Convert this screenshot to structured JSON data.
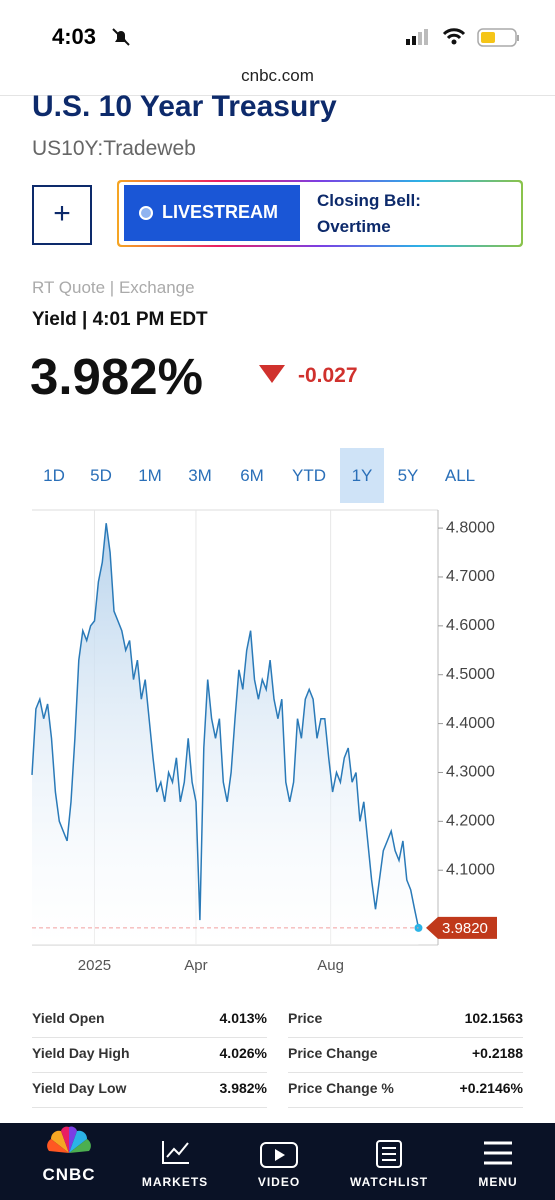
{
  "status_bar": {
    "time": "4:03"
  },
  "url": "cnbc.com",
  "header": {
    "title": "U.S. 10 Year Treasury",
    "symbol": "US10Y:Tradeweb"
  },
  "add_button": "+",
  "livestream": {
    "label": "LIVESTREAM",
    "show": "Closing Bell: Overtime"
  },
  "quote": {
    "source": "RT Quote | Exchange",
    "timestamp": "Yield | 4:01 PM EDT",
    "last": "3.982%",
    "change": "-0.027"
  },
  "ranges": {
    "options": [
      "1D",
      "5D",
      "1M",
      "3M",
      "6M",
      "YTD",
      "1Y",
      "5Y",
      "ALL"
    ],
    "active": 6
  },
  "chart_data": {
    "type": "line",
    "color": "#2a7ab8",
    "values": [
      4.295,
      4.43,
      4.45,
      4.41,
      4.44,
      4.37,
      4.26,
      4.2,
      4.18,
      4.16,
      4.24,
      4.37,
      4.53,
      4.59,
      4.57,
      4.6,
      4.61,
      4.69,
      4.73,
      4.81,
      4.75,
      4.63,
      4.61,
      4.59,
      4.55,
      4.57,
      4.49,
      4.53,
      4.45,
      4.49,
      4.41,
      4.33,
      4.26,
      4.28,
      4.24,
      4.3,
      4.28,
      4.33,
      4.24,
      4.28,
      4.37,
      4.28,
      4.24,
      3.998,
      4.35,
      4.49,
      4.41,
      4.37,
      4.41,
      4.28,
      4.24,
      4.3,
      4.41,
      4.51,
      4.47,
      4.55,
      4.59,
      4.49,
      4.45,
      4.49,
      4.47,
      4.53,
      4.45,
      4.41,
      4.45,
      4.28,
      4.24,
      4.28,
      4.41,
      4.37,
      4.45,
      4.47,
      4.45,
      4.37,
      4.41,
      4.41,
      4.33,
      4.26,
      4.3,
      4.28,
      4.33,
      4.35,
      4.28,
      4.3,
      4.2,
      4.24,
      4.16,
      4.08,
      4.02,
      4.08,
      4.14,
      4.16,
      4.18,
      4.14,
      4.12,
      4.16,
      4.08,
      4.06,
      4.02,
      3.982
    ],
    "xlim": [
      0,
      104
    ],
    "xticks": [
      {
        "value": 16,
        "label": "2025"
      },
      {
        "value": 42,
        "label": "Apr"
      },
      {
        "value": 76.5,
        "label": "Aug"
      }
    ],
    "ylim": [
      3.947,
      4.837
    ],
    "yticks": [
      {
        "value": 4.1,
        "label": "4.1000"
      },
      {
        "value": 4.2,
        "label": "4.2000"
      },
      {
        "value": 4.3,
        "label": "4.3000"
      },
      {
        "value": 4.4,
        "label": "4.4000"
      },
      {
        "value": 4.5,
        "label": "4.5000"
      },
      {
        "value": 4.6,
        "label": "4.6000"
      },
      {
        "value": 4.7,
        "label": "4.7000"
      },
      {
        "value": 4.8,
        "label": "4.8000"
      }
    ],
    "last_label": {
      "value": 3.982,
      "label": "3.9820"
    },
    "grid": true
  },
  "stats": {
    "rows": [
      [
        "Yield Open",
        "4.013%",
        "Price",
        "102.1563"
      ],
      [
        "Yield Day High",
        "4.026%",
        "Price Change",
        "+0.2188"
      ],
      [
        "Yield Day Low",
        "3.982%",
        "Price Change %",
        "+0.2146%"
      ]
    ]
  },
  "nav": [
    "CNBC",
    "MARKETS",
    "VIDEO",
    "WATCHLIST",
    "MENU"
  ]
}
